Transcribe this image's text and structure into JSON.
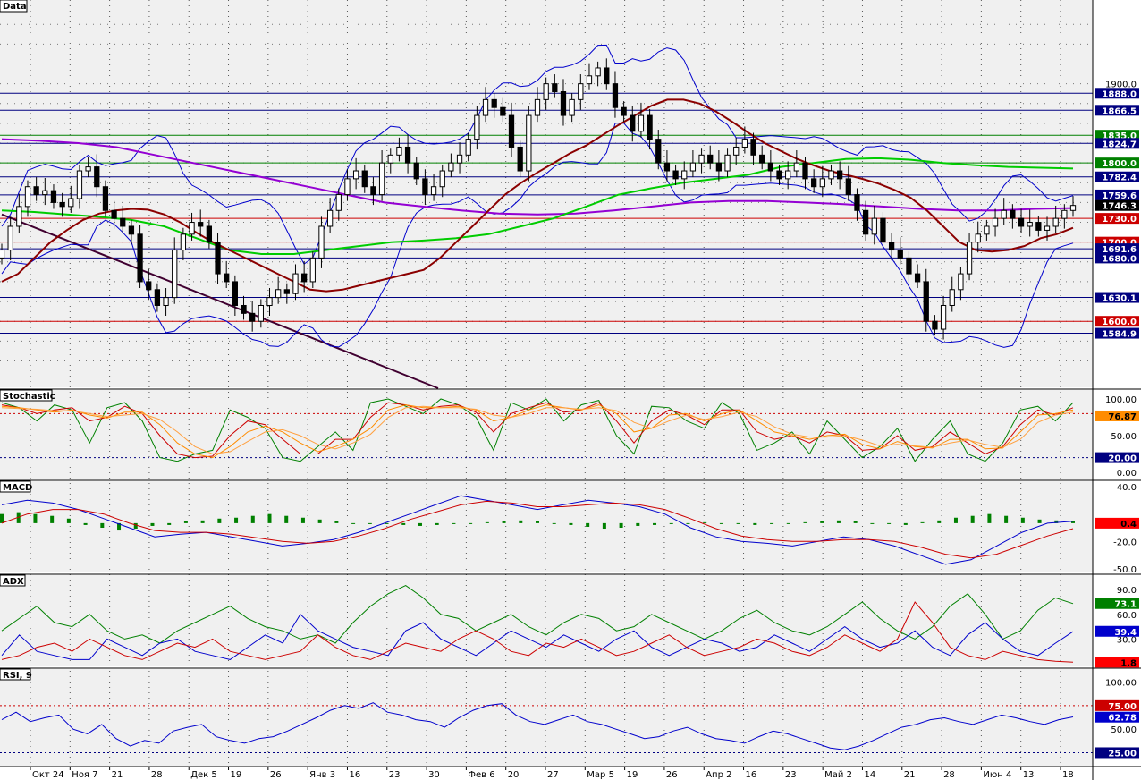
{
  "panes": {
    "price": {
      "title": "Data"
    },
    "stochastic": {
      "title": "Stochastic"
    },
    "macd": {
      "title": "MACD"
    },
    "adx": {
      "title": "ADX"
    },
    "rsi": {
      "title": "RSI, 9"
    }
  },
  "colors": {
    "background": "#f0f0f0",
    "up": "#ffffff",
    "down": "#000000",
    "ma_fast": "#8b0000",
    "ma_mid": "#00cc00",
    "ma_slow": "#9400d3",
    "bollinger": "#0000cc",
    "trendline": "#400030",
    "level_blue": "#000080",
    "level_red": "#cc0000",
    "level_green": "#008000"
  },
  "chart_data": [
    {
      "type": "candlestick",
      "pane": "Data",
      "ylim": [
        1520,
        1990
      ],
      "y_ticks": [
        1900.0
      ],
      "x_tick_labels": [
        "Окт 24",
        "Ноя 7",
        "21",
        "28",
        "Дек 5",
        "19",
        "26",
        "Янв 3",
        "16",
        "23",
        "30",
        "Фев 6",
        "20",
        "27",
        "Мар 5",
        "19",
        "26",
        "Апр 2",
        "16",
        "23",
        "Май 2",
        "14",
        "21",
        "28",
        "Июн 4",
        "13",
        "18"
      ],
      "horizontal_levels": [
        {
          "value": 1888.0,
          "label": "1888.0",
          "style": "blue"
        },
        {
          "value": 1866.5,
          "label": "1866.5",
          "style": "blue"
        },
        {
          "value": 1835.0,
          "label": "1835.0",
          "style": "green"
        },
        {
          "value": 1824.7,
          "label": "1824.7",
          "style": "blue"
        },
        {
          "value": 1800.0,
          "label": "1800.0",
          "style": "green"
        },
        {
          "value": 1782.4,
          "label": "1782.4",
          "style": "blue"
        },
        {
          "value": 1759.6,
          "label": "1759.6",
          "style": "blue"
        },
        {
          "value": 1730.0,
          "label": "1730.0",
          "style": "red"
        },
        {
          "value": 1700.0,
          "label": "1700.0",
          "style": "red"
        },
        {
          "value": 1691.6,
          "label": "1691.6",
          "style": "blue"
        },
        {
          "value": 1680.0,
          "label": "1680.0",
          "style": "blue"
        },
        {
          "value": 1630.1,
          "label": "1630.1",
          "style": "blue"
        },
        {
          "value": 1600.0,
          "label": "1600.0",
          "style": "red"
        },
        {
          "value": 1584.9,
          "label": "1584.9",
          "style": "blue"
        }
      ],
      "last_price": {
        "value": 1746.3,
        "label": "1746.3"
      },
      "close": [
        1690,
        1720,
        1745,
        1770,
        1760,
        1765,
        1750,
        1745,
        1755,
        1790,
        1795,
        1770,
        1740,
        1730,
        1720,
        1710,
        1650,
        1640,
        1620,
        1630,
        1690,
        1710,
        1725,
        1720,
        1700,
        1660,
        1650,
        1620,
        1610,
        1600,
        1620,
        1630,
        1640,
        1635,
        1660,
        1650,
        1680,
        1720,
        1740,
        1760,
        1780,
        1790,
        1770,
        1760,
        1800,
        1810,
        1820,
        1800,
        1780,
        1760,
        1770,
        1790,
        1800,
        1810,
        1830,
        1860,
        1880,
        1870,
        1860,
        1820,
        1790,
        1860,
        1880,
        1900,
        1890,
        1860,
        1880,
        1900,
        1910,
        1920,
        1900,
        1870,
        1860,
        1840,
        1860,
        1830,
        1800,
        1790,
        1780,
        1790,
        1800,
        1810,
        1800,
        1790,
        1810,
        1820,
        1830,
        1810,
        1800,
        1790,
        1780,
        1790,
        1800,
        1780,
        1770,
        1780,
        1790,
        1780,
        1760,
        1740,
        1710,
        1730,
        1700,
        1690,
        1680,
        1660,
        1650,
        1600,
        1590,
        1620,
        1640,
        1660,
        1700,
        1710,
        1720,
        1730,
        1740,
        1730,
        1720,
        1725,
        1715,
        1720,
        1730,
        1740,
        1746.3
      ],
      "ma_fast": [
        1650,
        1660,
        1680,
        1700,
        1715,
        1728,
        1736,
        1740,
        1742,
        1741,
        1735,
        1725,
        1712,
        1700,
        1690,
        1680,
        1670,
        1660,
        1650,
        1640,
        1638,
        1640,
        1645,
        1650,
        1655,
        1660,
        1665,
        1680,
        1700,
        1720,
        1740,
        1760,
        1775,
        1788,
        1800,
        1812,
        1822,
        1835,
        1848,
        1860,
        1872,
        1880,
        1880,
        1875,
        1865,
        1852,
        1838,
        1825,
        1815,
        1805,
        1797,
        1790,
        1785,
        1780,
        1774,
        1766,
        1756,
        1740,
        1720,
        1700,
        1690,
        1688,
        1690,
        1695,
        1705,
        1710,
        1718
      ],
      "ma_mid": [
        1740,
        1738,
        1735,
        1732,
        1728,
        1720,
        1705,
        1690,
        1685,
        1685,
        1690,
        1695,
        1700,
        1702,
        1705,
        1710,
        1720,
        1730,
        1745,
        1760,
        1768,
        1775,
        1780,
        1785,
        1795,
        1800,
        1805,
        1806,
        1804,
        1800,
        1797,
        1795,
        1794,
        1793
      ],
      "ma_slow": [
        1830,
        1828,
        1825,
        1820,
        1810,
        1800,
        1790,
        1780,
        1770,
        1760,
        1750,
        1745,
        1740,
        1736,
        1735,
        1736,
        1740,
        1745,
        1750,
        1752,
        1752,
        1750,
        1748,
        1745,
        1742,
        1740,
        1740,
        1742,
        1743
      ]
    },
    {
      "type": "line",
      "pane": "Stochastic",
      "ylim": [
        0,
        100
      ],
      "y_ticks": [
        100.0,
        80.0,
        50.0,
        20.0,
        0.0
      ],
      "reference_levels": [
        80.0,
        20.0
      ],
      "badges": [
        "76.87",
        "20.00"
      ],
      "series": [
        {
          "values": [
            95,
            88,
            70,
            92,
            85,
            40,
            88,
            95,
            70,
            20,
            15,
            25,
            30,
            85,
            75,
            60,
            20,
            15,
            35,
            55,
            30,
            95,
            100,
            90,
            80,
            100,
            92,
            75,
            30,
            95,
            85,
            100,
            70,
            92,
            98,
            50,
            25,
            90,
            88,
            70,
            60,
            95,
            80,
            30,
            40,
            55,
            25,
            70,
            45,
            20,
            35,
            60,
            15,
            45,
            70,
            25,
            15,
            40,
            85,
            90,
            70,
            95
          ]
        },
        {
          "values": [
            92,
            88,
            80,
            85,
            88,
            70,
            75,
            90,
            80,
            50,
            25,
            20,
            22,
            50,
            70,
            65,
            45,
            25,
            25,
            45,
            45,
            75,
            95,
            92,
            85,
            90,
            92,
            82,
            55,
            80,
            88,
            95,
            82,
            85,
            95,
            70,
            40,
            70,
            85,
            78,
            65,
            85,
            85,
            55,
            45,
            50,
            40,
            55,
            50,
            30,
            32,
            50,
            30,
            35,
            55,
            40,
            25,
            35,
            65,
            85,
            78,
            88
          ]
        },
        {
          "values": [
            90,
            88,
            85,
            82,
            85,
            78,
            74,
            82,
            82,
            65,
            40,
            25,
            20,
            35,
            55,
            63,
            55,
            40,
            28,
            35,
            45,
            60,
            85,
            92,
            88,
            88,
            90,
            85,
            70,
            75,
            85,
            92,
            88,
            85,
            92,
            80,
            55,
            60,
            78,
            80,
            70,
            80,
            85,
            70,
            55,
            50,
            45,
            50,
            52,
            38,
            32,
            42,
            35,
            33,
            45,
            45,
            32,
            33,
            55,
            78,
            80,
            85
          ]
        },
        {
          "values": [
            88,
            87,
            86,
            84,
            84,
            80,
            76,
            78,
            80,
            72,
            55,
            35,
            25,
            28,
            42,
            55,
            58,
            50,
            38,
            32,
            40,
            52,
            75,
            88,
            90,
            88,
            88,
            86,
            78,
            75,
            80,
            88,
            88,
            86,
            88,
            84,
            68,
            60,
            70,
            78,
            72,
            76,
            82,
            76,
            62,
            52,
            48,
            48,
            50,
            44,
            36,
            38,
            36,
            34,
            40,
            44,
            38,
            34,
            45,
            68,
            78,
            82
          ]
        }
      ]
    },
    {
      "type": "bar_line",
      "pane": "MACD",
      "ylim": [
        -50,
        40
      ],
      "y_ticks": [
        40.0,
        -20.0,
        -50.0
      ],
      "badges": [
        "0.4"
      ],
      "histogram": [
        10,
        12,
        10,
        8,
        5,
        -2,
        -5,
        -8,
        -6,
        -3,
        -2,
        2,
        3,
        5,
        6,
        8,
        10,
        8,
        6,
        4,
        2,
        0,
        -1,
        -1,
        -2,
        -3,
        -2,
        -1,
        0,
        1,
        2,
        3,
        2,
        0,
        -2,
        -4,
        -6,
        -5,
        -3,
        -2,
        -1,
        0,
        1,
        0,
        -1,
        -2,
        -1,
        0,
        1,
        2,
        3,
        2,
        0,
        -1,
        -2,
        1,
        3,
        6,
        8,
        10,
        8,
        6,
        4,
        3,
        2
      ],
      "macd_line": [
        20,
        25,
        22,
        15,
        5,
        -5,
        -15,
        -12,
        -10,
        -15,
        -20,
        -25,
        -22,
        -18,
        -10,
        0,
        10,
        20,
        30,
        25,
        20,
        15,
        20,
        25,
        22,
        18,
        10,
        -5,
        -15,
        -20,
        -22,
        -25,
        -20,
        -15,
        -18,
        -25,
        -35,
        -45,
        -40,
        -25,
        -10,
        0,
        2
      ],
      "signal_line": [
        0,
        10,
        15,
        15,
        10,
        0,
        -8,
        -10,
        -10,
        -12,
        -16,
        -20,
        -22,
        -20,
        -14,
        -6,
        4,
        12,
        20,
        24,
        22,
        18,
        18,
        20,
        22,
        20,
        15,
        5,
        -6,
        -14,
        -18,
        -20,
        -20,
        -18,
        -18,
        -20,
        -26,
        -34,
        -38,
        -34,
        -24,
        -14,
        -6
      ]
    },
    {
      "type": "line",
      "pane": "ADX",
      "ylim": [
        0,
        100
      ],
      "y_ticks": [
        90.0,
        60.0,
        30.0
      ],
      "badges": [
        "73.1",
        "39.4",
        "1.8"
      ],
      "series": [
        {
          "values": [
            40,
            55,
            70,
            50,
            45,
            60,
            40,
            30,
            35,
            25,
            40,
            50,
            60,
            70,
            55,
            45,
            40,
            30,
            35,
            25,
            50,
            70,
            85,
            95,
            80,
            60,
            55,
            40,
            50,
            60,
            45,
            35,
            50,
            60,
            55,
            40,
            45,
            60,
            50,
            40,
            30,
            40,
            55,
            65,
            50,
            40,
            35,
            45,
            60,
            75,
            55,
            40,
            30,
            45,
            70,
            85,
            60,
            30,
            40,
            65,
            80,
            73
          ]
        },
        {
          "values": [
            10,
            35,
            15,
            10,
            5,
            5,
            30,
            20,
            10,
            25,
            30,
            15,
            10,
            5,
            20,
            35,
            25,
            60,
            40,
            30,
            20,
            15,
            10,
            40,
            50,
            30,
            20,
            10,
            25,
            40,
            30,
            20,
            35,
            25,
            15,
            30,
            40,
            20,
            10,
            20,
            30,
            25,
            15,
            20,
            35,
            25,
            15,
            30,
            45,
            30,
            20,
            25,
            40,
            20,
            10,
            35,
            50,
            30,
            15,
            10,
            25,
            39
          ]
        },
        {
          "values": [
            5,
            10,
            20,
            25,
            15,
            30,
            20,
            10,
            5,
            15,
            25,
            20,
            30,
            15,
            10,
            5,
            10,
            15,
            35,
            20,
            10,
            5,
            15,
            25,
            20,
            15,
            30,
            40,
            30,
            15,
            10,
            25,
            20,
            30,
            20,
            10,
            15,
            25,
            35,
            20,
            10,
            15,
            20,
            30,
            25,
            15,
            10,
            20,
            35,
            25,
            15,
            30,
            75,
            50,
            20,
            10,
            5,
            15,
            10,
            5,
            3,
            2
          ]
        }
      ]
    },
    {
      "type": "line",
      "pane": "RSI, 9",
      "ylim": [
        15,
        110
      ],
      "y_ticks": [
        100.0,
        50.0
      ],
      "reference_levels": [
        75.0,
        25.0
      ],
      "badges": [
        "75.00",
        "62.78",
        "25.00"
      ],
      "series": [
        {
          "values": [
            60,
            68,
            58,
            62,
            65,
            50,
            45,
            55,
            40,
            32,
            38,
            35,
            48,
            52,
            55,
            42,
            38,
            35,
            40,
            42,
            48,
            55,
            62,
            70,
            75,
            72,
            78,
            68,
            65,
            60,
            58,
            52,
            62,
            70,
            75,
            77,
            65,
            58,
            55,
            60,
            65,
            58,
            55,
            50,
            45,
            40,
            42,
            48,
            52,
            45,
            40,
            38,
            35,
            42,
            48,
            45,
            40,
            35,
            30,
            28,
            32,
            38,
            45,
            52,
            55,
            60,
            62,
            58,
            55,
            60,
            65,
            62,
            58,
            55,
            60,
            63
          ]
        }
      ]
    }
  ],
  "price_axis": {
    "tick": "1900.0"
  }
}
